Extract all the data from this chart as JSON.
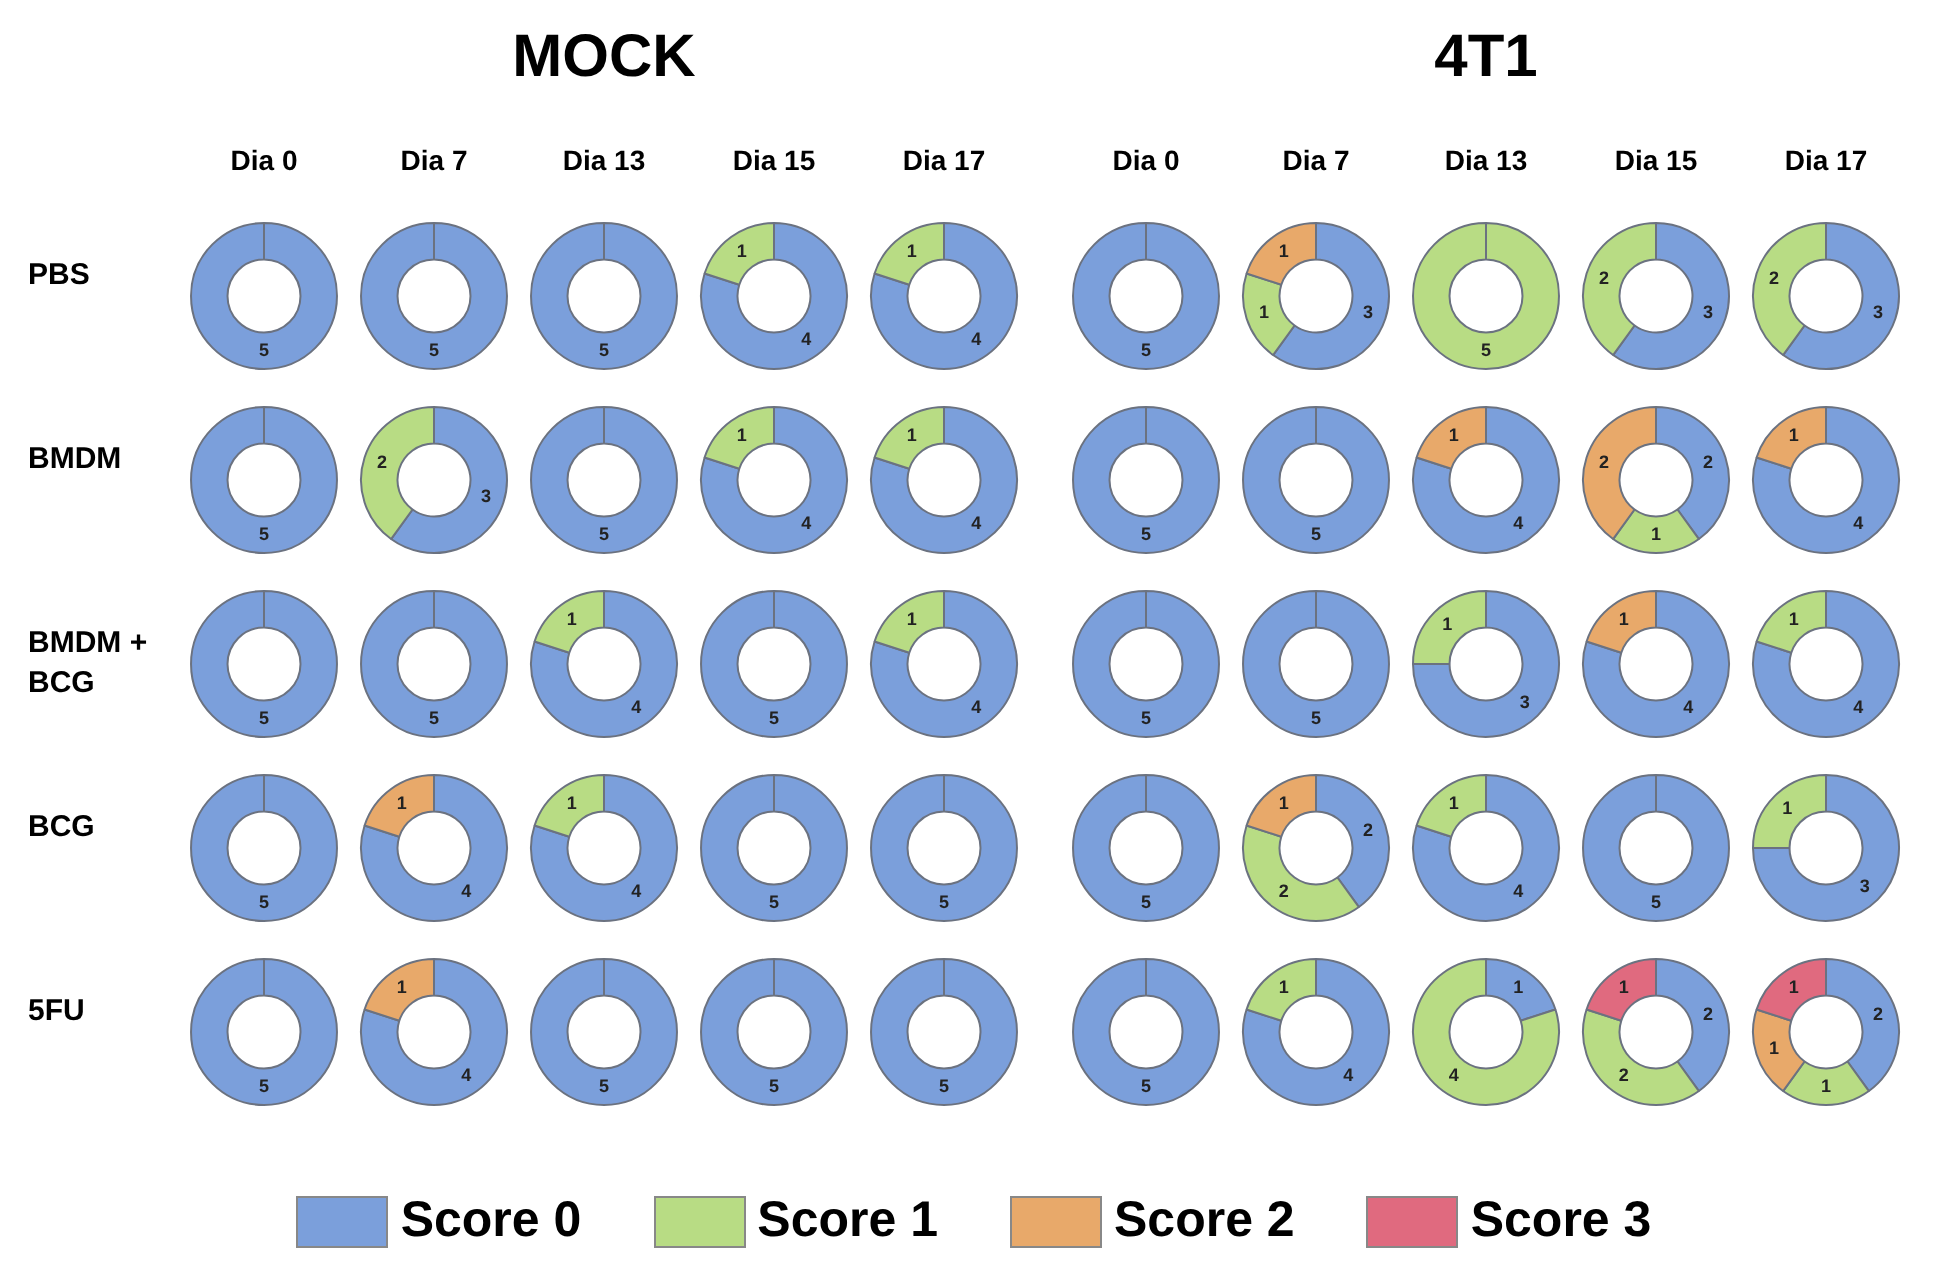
{
  "chart_data": {
    "type": "donut",
    "categories": [
      "Score 0",
      "Score 1",
      "Score 2",
      "Score 3"
    ],
    "colors": [
      "#7b9fdb",
      "#b8dc84",
      "#e8a96a",
      "#e06a7f"
    ],
    "legend": "bottom",
    "data_labels": true,
    "annotations": [
      "MOCK",
      "4T1",
      "Dia 0",
      "Dia 7",
      "Dia 13",
      "Dia 15",
      "Dia 17",
      "Dia 0",
      "Dia 7",
      "Dia 13",
      "Dia 15",
      "Dia 17",
      "PBS",
      "BMDM",
      "BMDM + BCG",
      "BCG",
      "5FU"
    ],
    "series": [
      {
        "values": [
          5,
          0,
          0,
          0
        ]
      },
      {
        "values": [
          5,
          0,
          0,
          0
        ]
      },
      {
        "values": [
          5,
          0,
          0,
          0
        ]
      },
      {
        "values": [
          4,
          1,
          0,
          0
        ]
      },
      {
        "values": [
          4,
          1,
          0,
          0
        ]
      },
      {
        "values": [
          5,
          0,
          0,
          0
        ]
      },
      {
        "values": [
          3,
          1,
          1,
          0
        ]
      },
      {
        "values": [
          0,
          5,
          0,
          0
        ]
      },
      {
        "values": [
          3,
          2,
          0,
          0
        ]
      },
      {
        "values": [
          3,
          2,
          0,
          0
        ]
      },
      {
        "values": [
          5,
          0,
          0,
          0
        ]
      },
      {
        "values": [
          3,
          2,
          0,
          0
        ]
      },
      {
        "values": [
          5,
          0,
          0,
          0
        ]
      },
      {
        "values": [
          4,
          1,
          0,
          0
        ]
      },
      {
        "values": [
          4,
          1,
          0,
          0
        ]
      },
      {
        "values": [
          5,
          0,
          0,
          0
        ]
      },
      {
        "values": [
          5,
          0,
          0,
          0
        ]
      },
      {
        "values": [
          4,
          0,
          1,
          0
        ]
      },
      {
        "values": [
          2,
          1,
          2,
          0
        ]
      },
      {
        "values": [
          4,
          0,
          1,
          0
        ]
      },
      {
        "values": [
          5,
          0,
          0,
          0
        ]
      },
      {
        "values": [
          5,
          0,
          0,
          0
        ]
      },
      {
        "values": [
          4,
          1,
          0,
          0
        ]
      },
      {
        "values": [
          5,
          0,
          0,
          0
        ]
      },
      {
        "values": [
          4,
          1,
          0,
          0
        ]
      },
      {
        "values": [
          5,
          0,
          0,
          0
        ]
      },
      {
        "values": [
          5,
          0,
          0,
          0
        ]
      },
      {
        "values": [
          3,
          1,
          0,
          0
        ]
      },
      {
        "values": [
          4,
          0,
          1,
          0
        ]
      },
      {
        "values": [
          4,
          1,
          0,
          0
        ]
      },
      {
        "values": [
          5,
          0,
          0,
          0
        ]
      },
      {
        "values": [
          4,
          0,
          1,
          0
        ]
      },
      {
        "values": [
          4,
          1,
          0,
          0
        ]
      },
      {
        "values": [
          5,
          0,
          0,
          0
        ]
      },
      {
        "values": [
          5,
          0,
          0,
          0
        ]
      },
      {
        "values": [
          5,
          0,
          0,
          0
        ]
      },
      {
        "values": [
          2,
          2,
          1,
          0
        ]
      },
      {
        "values": [
          4,
          1,
          0,
          0
        ]
      },
      {
        "values": [
          5,
          0,
          0,
          0
        ]
      },
      {
        "values": [
          3,
          1,
          0,
          0
        ]
      },
      {
        "values": [
          5,
          0,
          0,
          0
        ]
      },
      {
        "values": [
          4,
          0,
          1,
          0
        ]
      },
      {
        "values": [
          5,
          0,
          0,
          0
        ]
      },
      {
        "values": [
          5,
          0,
          0,
          0
        ]
      },
      {
        "values": [
          5,
          0,
          0,
          0
        ]
      },
      {
        "values": [
          5,
          0,
          0,
          0
        ]
      },
      {
        "values": [
          4,
          1,
          0,
          0
        ]
      },
      {
        "values": [
          1,
          4,
          0,
          0
        ]
      },
      {
        "values": [
          2,
          2,
          0,
          1
        ]
      },
      {
        "values": [
          2,
          1,
          1,
          1
        ]
      }
    ]
  }
}
